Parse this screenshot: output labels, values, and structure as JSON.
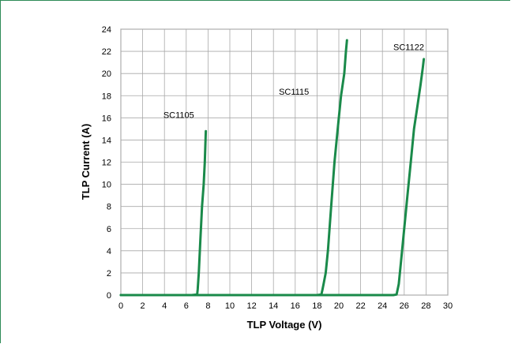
{
  "chart_data": {
    "type": "line",
    "title": "",
    "xlabel": "TLP Voltage (V)",
    "ylabel": "TLP Current (A)",
    "xlim": [
      0,
      30
    ],
    "ylim": [
      0,
      24
    ],
    "xticks": [
      0,
      2,
      4,
      6,
      8,
      10,
      12,
      14,
      16,
      18,
      20,
      22,
      24,
      26,
      28,
      30
    ],
    "yticks": [
      0,
      2,
      4,
      6,
      8,
      10,
      12,
      14,
      16,
      18,
      20,
      22,
      24
    ],
    "grid": true,
    "legend": "none",
    "line_color": "#1a8a4a",
    "series": [
      {
        "name": "SC1105",
        "label_at": [
          3.9,
          16.0
        ],
        "x": [
          0,
          6.5,
          7.0,
          7.05,
          7.15,
          7.3,
          7.45,
          7.6,
          7.7,
          7.75,
          7.8
        ],
        "y": [
          0,
          0,
          0.05,
          0.5,
          2,
          5,
          8,
          10,
          12,
          13.5,
          14.8
        ]
      },
      {
        "name": "SC1115",
        "label_at": [
          14.5,
          18.1
        ],
        "x": [
          0,
          18.0,
          18.4,
          18.5,
          18.6,
          18.8,
          19.0,
          19.3,
          19.6,
          19.9,
          20.2,
          20.5,
          20.65,
          20.75
        ],
        "y": [
          0,
          0,
          0.05,
          0.5,
          1,
          2,
          4,
          8,
          12,
          15,
          18,
          20,
          22,
          23.0
        ]
      },
      {
        "name": "SC1122",
        "label_at": [
          25.0,
          22.1
        ],
        "x": [
          0,
          25.0,
          25.3,
          25.5,
          25.7,
          26.0,
          26.3,
          26.6,
          26.9,
          27.2,
          27.5,
          27.7,
          27.8
        ],
        "y": [
          0,
          0,
          0.05,
          1,
          3,
          6,
          9,
          12,
          15,
          17,
          19,
          20.5,
          21.3
        ]
      }
    ]
  }
}
